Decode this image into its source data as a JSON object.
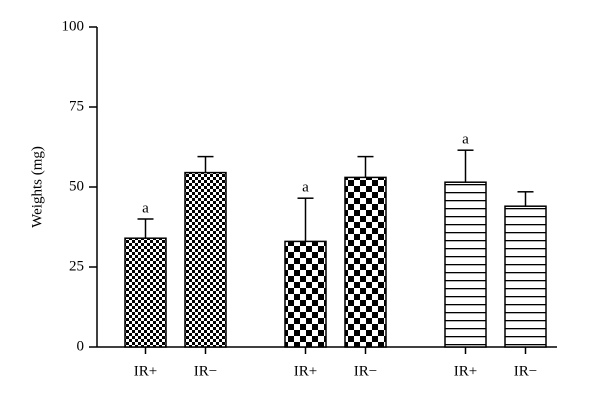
{
  "chart_data": {
    "type": "bar",
    "y_label": "Weights (mg)",
    "categories": [
      "IR+",
      "IR−",
      "IR+",
      "IR−",
      "IR+",
      "IR−"
    ],
    "values": [
      34,
      54.5,
      33,
      53,
      51.5,
      44
    ],
    "errors": [
      6,
      5,
      13.5,
      6.5,
      10,
      4.5
    ],
    "annotations": [
      "a",
      null,
      "a",
      null,
      "a",
      null
    ],
    "patterns": [
      "fine-check",
      "fine-check",
      "coarse-check",
      "coarse-check",
      "hlines",
      "hlines"
    ],
    "color": "#000000",
    "ylim": [
      0,
      100
    ],
    "yticks": [
      0,
      25,
      50,
      75,
      100
    ]
  }
}
